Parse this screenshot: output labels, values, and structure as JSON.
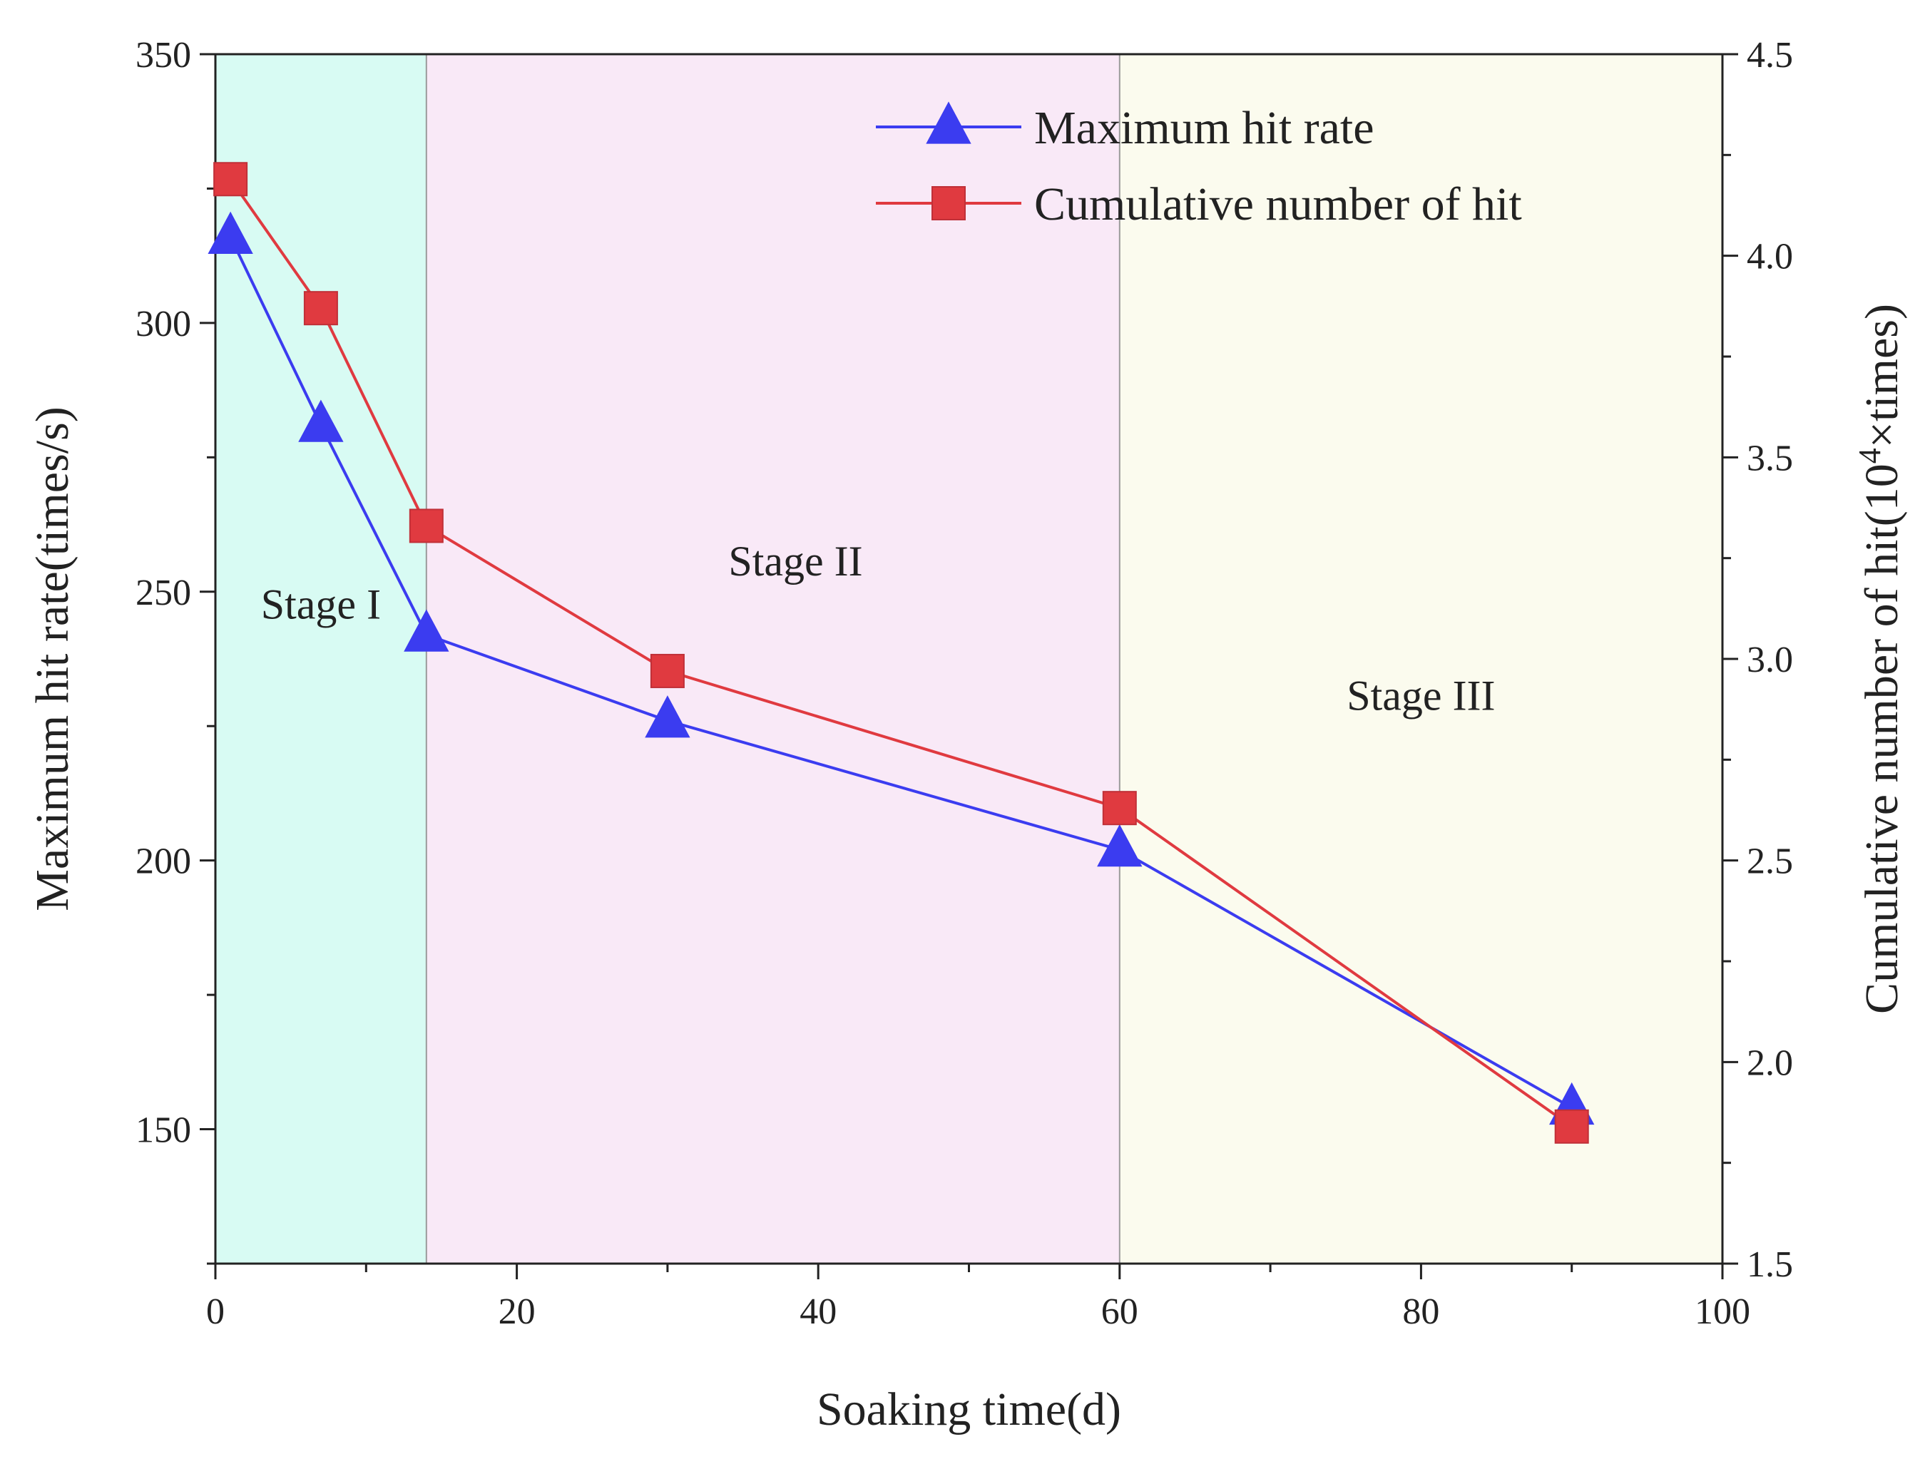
{
  "chart_data": {
    "type": "line",
    "x_axis": {
      "label": "Soaking time(d)",
      "range": [
        0,
        100
      ],
      "ticks": [
        0,
        20,
        40,
        60,
        80,
        100
      ]
    },
    "y_axis_left": {
      "label": "Maximum hit rate(times/s)",
      "range": [
        125,
        350
      ],
      "ticks": [
        150,
        200,
        250,
        300,
        350
      ]
    },
    "y_axis_right": {
      "label_prefix": "Cumulative number of hit(10",
      "label_sup": "4",
      "label_suffix": "×times)",
      "range": [
        1.5,
        4.5
      ],
      "ticks": [
        1.5,
        2.0,
        2.5,
        3.0,
        3.5,
        4.0,
        4.5
      ],
      "tick_labels": [
        "1.5",
        "2.0",
        "2.5",
        "3.0",
        "3.5",
        "4.0",
        "4.5"
      ]
    },
    "regions": [
      {
        "name": "Stage I",
        "x_start": 0,
        "x_end": 14,
        "color": "#d8fbf3",
        "label_x": 7,
        "label_y": 245
      },
      {
        "name": "Stage II",
        "x_start": 14,
        "x_end": 60,
        "color": "#f9e9f7",
        "label_x": 38.5,
        "label_y": 253
      },
      {
        "name": "Stage III",
        "x_start": 60,
        "x_end": 100,
        "color": "#fbfbee",
        "label_x": 80,
        "label_y": 228
      }
    ],
    "series": [
      {
        "name": "Maximum hit rate",
        "axis": "left",
        "marker": "triangle",
        "color": "#3b3cf0",
        "x": [
          1,
          7,
          14,
          30,
          60,
          90
        ],
        "y": [
          316,
          281,
          242,
          226,
          202,
          154
        ]
      },
      {
        "name": "Cumulative number of hit",
        "axis": "right",
        "marker": "square",
        "color": "#e03a40",
        "x": [
          1,
          7,
          14,
          30,
          60,
          90
        ],
        "y": [
          4.19,
          3.87,
          3.33,
          2.97,
          2.63,
          1.84
        ]
      }
    ],
    "legend_position": "top-right"
  }
}
